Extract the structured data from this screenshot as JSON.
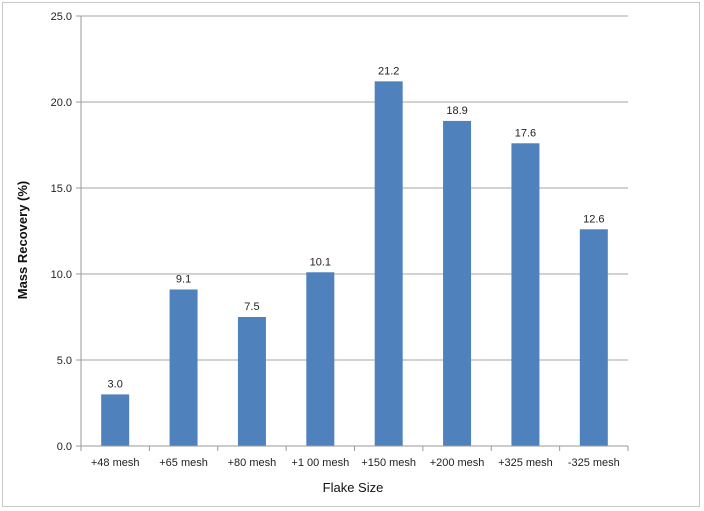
{
  "chart_data": {
    "type": "bar",
    "title": "",
    "xlabel": "Flake Size",
    "ylabel": "Mass Recovery (%)",
    "categories": [
      "+48 mesh",
      "+65 mesh",
      "+80 mesh",
      "+1 00 mesh",
      "+150 mesh",
      "+200 mesh",
      "+325 mesh",
      "-325 mesh"
    ],
    "values": [
      3.0,
      9.1,
      7.5,
      10.1,
      21.2,
      18.9,
      17.6,
      12.6
    ],
    "data_labels": [
      "3.0",
      "9.1",
      "7.5",
      "10.1",
      "21.2",
      "18.9",
      "17.6",
      "12.6"
    ],
    "ylim": [
      0,
      25
    ],
    "yticks": [
      0,
      5,
      10,
      15,
      20,
      25
    ],
    "ytick_labels": [
      "0.0",
      "5.0",
      "10.0",
      "15.0",
      "20.0",
      "25.0"
    ],
    "grid": true,
    "legend": "none",
    "bar_color": "#4f81bd"
  }
}
